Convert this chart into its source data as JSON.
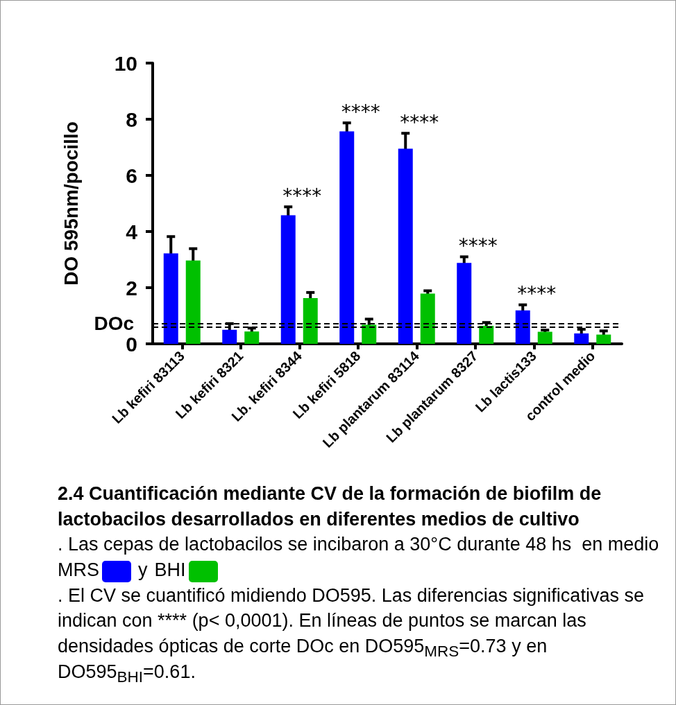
{
  "chart_data": {
    "type": "bar",
    "title": "2.4 Cuantificación mediante CV de la formación de biofilm de lactobacilos desarrollados en diferentes medios de cultivo",
    "subtitle": ". Las cepas de lactobacilos se incibaron a 30°C durante 48 hs  en medio",
    "ylabel": "DO 595nm/pocillo",
    "categories": [
      "Lb kefiri 83113",
      "Lb kefiri 8321",
      "Lb. kefiri 8344",
      "Lb kefiri 5818",
      "Lb plantarum 83114",
      "Lb plantarum 8327",
      "Lb lactis133",
      "control medio"
    ],
    "series": [
      {
        "name": "MRS",
        "color": "#0000ff",
        "values": [
          3.22,
          0.5,
          4.58,
          7.57,
          6.95,
          2.88,
          1.19,
          0.37
        ],
        "errors": [
          0.6,
          0.22,
          0.3,
          0.3,
          0.55,
          0.22,
          0.2,
          0.15
        ],
        "value_labels": [
          null,
          null,
          "****",
          "****",
          "****",
          "****",
          "****",
          null
        ]
      },
      {
        "name": "BHI",
        "color": "#00c000",
        "values": [
          2.97,
          0.44,
          1.63,
          0.68,
          1.79,
          0.64,
          0.43,
          0.33
        ],
        "errors": [
          0.42,
          0.12,
          0.2,
          0.2,
          0.1,
          0.12,
          0.06,
          0.13
        ]
      }
    ],
    "ylim": [
      0,
      10
    ],
    "yticks": [
      0,
      2,
      4,
      6,
      8,
      10
    ],
    "legend": "bottom",
    "ref_lines": [
      {
        "axis": "y",
        "value": 0.73,
        "label": "DOc",
        "color": "#000000",
        "line_style": "dashed"
      },
      {
        "axis": "y",
        "value": 0.61,
        "label": null,
        "color": "#000000",
        "line_style": "dashed"
      }
    ],
    "annotations": [
      "y",
      ". El CV se cuantificó midiendo DO595. Las diferencias significativas se indican con **** (p< 0,0001). En líneas de puntos se marcan las densidades ópticas de corte DOc en DO595$_{MRS}$=0.73 y en DO595$_{BHI}$=0.61."
    ]
  }
}
